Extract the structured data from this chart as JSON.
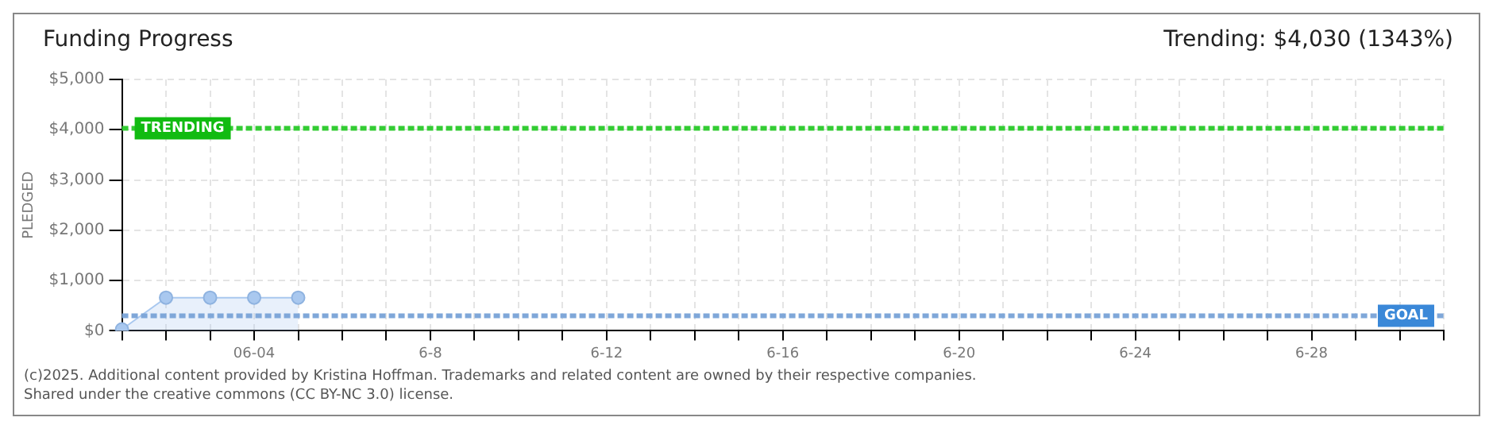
{
  "chart_data": {
    "type": "area",
    "title": "Funding Progress",
    "subtitle": "Trending: $4,030 (1343%)",
    "ylabel": "PLEDGED",
    "categories": [
      null,
      null,
      null,
      "06-04",
      null,
      null,
      null,
      "6-8",
      null,
      null,
      null,
      "6-12",
      null,
      null,
      null,
      "6-16",
      null,
      null,
      null,
      "6-20",
      null,
      null,
      null,
      "6-24",
      null,
      null,
      null,
      "6-28",
      null,
      null,
      null
    ],
    "series": [
      {
        "color": "#a9c8ef",
        "values": [
          30,
          660,
          660,
          660,
          660,
          null,
          null,
          null,
          null,
          null,
          null,
          null,
          null,
          null,
          null,
          null,
          null,
          null,
          null,
          null,
          null,
          null,
          null,
          null,
          null,
          null,
          null,
          null,
          null,
          null,
          null
        ]
      }
    ],
    "ylim": [
      0,
      5000
    ],
    "yticks": [
      {
        "value": 0,
        "label": "$0"
      },
      {
        "value": 1000,
        "label": "$1,000"
      },
      {
        "value": 2000,
        "label": "$2,000"
      },
      {
        "value": 3000,
        "label": "$3,000"
      },
      {
        "value": 4000,
        "label": "$4,000"
      },
      {
        "value": 5000,
        "label": "$5,000"
      }
    ],
    "ref_lines": [
      {
        "axis": "y",
        "value": 4030,
        "label": "TRENDING",
        "color": "#33cc33",
        "line_style": "dashed"
      },
      {
        "axis": "y",
        "value": 300,
        "label": "GOAL",
        "color": "#7fa7d9",
        "line_style": "dashed"
      }
    ],
    "grid": true,
    "legend": false,
    "marker": "circle",
    "annotations": [
      "(c)2025. Additional content provided by Kristina Hoffman. Trademarks and related content are owned by their respective companies.",
      "Shared under the creative commons (CC BY-NC 3.0) license."
    ]
  }
}
